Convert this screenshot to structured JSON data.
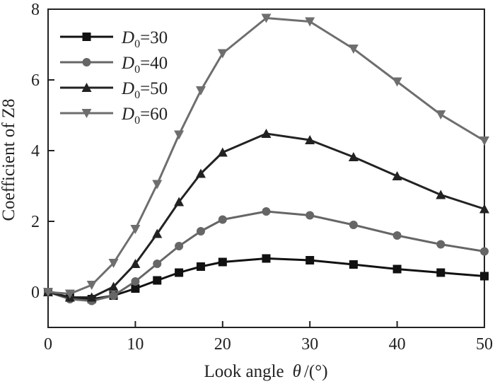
{
  "chart_data": {
    "type": "line",
    "xlabel": "Look angle",
    "xlabel_symbol": "θ",
    "xlabel_unit": "/(°)",
    "ylabel": "Coefficient of Z8",
    "xlim": [
      0,
      50
    ],
    "ylim": [
      -1,
      8
    ],
    "xticks": [
      0,
      10,
      20,
      30,
      40,
      50
    ],
    "yticks": [
      0,
      2,
      4,
      6,
      8
    ],
    "grid": false,
    "legend_position": "top-left",
    "x": [
      0,
      2.5,
      5,
      7.5,
      10,
      12.5,
      15,
      17.5,
      20,
      25,
      30,
      35,
      40,
      45,
      50
    ],
    "series": [
      {
        "label_main": "D",
        "label_sub": "0",
        "label_rest": "=30",
        "marker": "square",
        "color": "#111111",
        "values": [
          0,
          -0.15,
          -0.2,
          -0.1,
          0.1,
          0.33,
          0.55,
          0.72,
          0.85,
          0.95,
          0.9,
          0.78,
          0.65,
          0.55,
          0.45
        ]
      },
      {
        "label_main": "D",
        "label_sub": "0",
        "label_rest": "=40",
        "marker": "circle",
        "color": "#666666",
        "values": [
          0,
          -0.2,
          -0.25,
          -0.1,
          0.3,
          0.8,
          1.3,
          1.72,
          2.05,
          2.28,
          2.17,
          1.9,
          1.6,
          1.35,
          1.15
        ]
      },
      {
        "label_main": "D",
        "label_sub": "0",
        "label_rest": "=50",
        "marker": "triangle-up",
        "color": "#222222",
        "values": [
          0,
          -0.15,
          -0.15,
          0.15,
          0.8,
          1.65,
          2.55,
          3.35,
          3.95,
          4.48,
          4.3,
          3.82,
          3.28,
          2.75,
          2.35
        ]
      },
      {
        "label_main": "D",
        "label_sub": "0",
        "label_rest": "=60",
        "marker": "triangle-down",
        "color": "#6e6e6e",
        "values": [
          0,
          -0.05,
          0.2,
          0.82,
          1.78,
          3.05,
          4.45,
          5.7,
          6.75,
          7.75,
          7.65,
          6.88,
          5.95,
          5.02,
          4.28
        ]
      }
    ]
  }
}
